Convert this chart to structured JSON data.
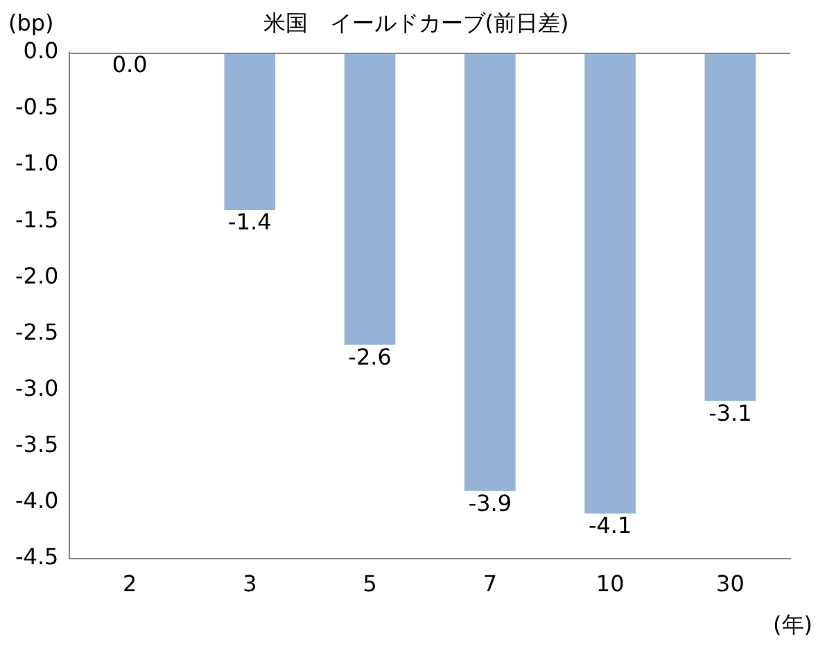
{
  "chart_data": {
    "type": "bar",
    "title": "米国　イールドカーブ(前日差)",
    "ylabel": "(bp)",
    "xlabel": "(年)",
    "categories": [
      "2",
      "3",
      "5",
      "7",
      "10",
      "30"
    ],
    "values": [
      0.0,
      -1.4,
      -2.6,
      -3.9,
      -4.1,
      -3.1
    ],
    "value_labels": [
      "0.0",
      "-1.4",
      "-2.6",
      "-3.9",
      "-4.1",
      "-3.1"
    ],
    "color": "#95b3d7",
    "ylim": [
      -4.5,
      0
    ],
    "yticks": [
      {
        "value": 0,
        "label": "0.0"
      },
      {
        "value": -0.5,
        "label": "-0.5"
      },
      {
        "value": -1,
        "label": "-1.0"
      },
      {
        "value": -1.5,
        "label": "-1.5"
      },
      {
        "value": -2,
        "label": "-2.0"
      },
      {
        "value": -2.5,
        "label": "-2.5"
      },
      {
        "value": -3,
        "label": "-3.0"
      },
      {
        "value": -3.5,
        "label": "-3.5"
      },
      {
        "value": -4,
        "label": "-4.0"
      },
      {
        "value": -4.5,
        "label": "-4.5"
      }
    ],
    "grid": false,
    "legend": false
  }
}
